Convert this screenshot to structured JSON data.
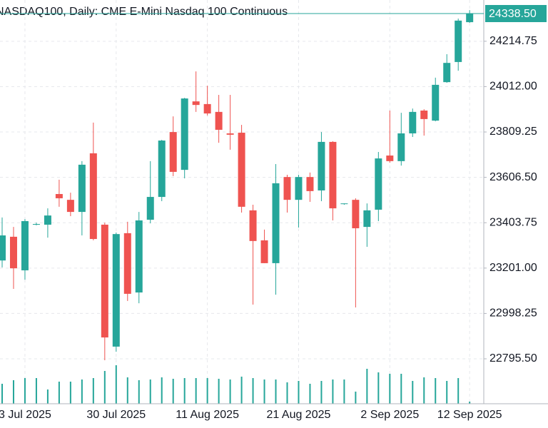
{
  "chart_data": {
    "type": "candlestick",
    "title": "NASDAQ100, Daily:  CME E-Mini Nasdaq 100 Continuous",
    "categories": [
      null,
      null,
      "3 Jul 2025",
      null,
      null,
      null,
      null,
      null,
      null,
      null,
      "30 Jul 2025",
      null,
      null,
      null,
      null,
      null,
      null,
      null,
      "11 Aug 2025",
      null,
      null,
      null,
      null,
      null,
      null,
      null,
      "21 Aug 2025",
      null,
      null,
      null,
      null,
      null,
      null,
      null,
      "2 Sep 2025",
      null,
      null,
      null,
      null,
      null,
      null,
      "12 Sep 2025"
    ],
    "open": [
      23235,
      23341,
      23191,
      23395,
      23395,
      23532,
      23506,
      23452,
      23714,
      23395,
      22850,
      23357,
      23092,
      23417,
      23519,
      23809,
      23640,
      23946,
      23934,
      23899,
      23803,
      23806,
      23459,
      23325,
      23223,
      23608,
      23506,
      23608,
      23548,
      23765,
      23487,
      23506,
      23385,
      23462,
      23704,
      23679,
      23803,
      23905,
      23860,
      24032,
      24122,
      24300
    ],
    "high": [
      23427,
      23385,
      23420,
      23404,
      23468,
      23596,
      23538,
      23679,
      23851,
      23404,
      23360,
      23408,
      23452,
      23679,
      23774,
      23879,
      23962,
      24080,
      24016,
      23975,
      23975,
      23841,
      23484,
      23373,
      23666,
      23618,
      23618,
      23628,
      23809,
      23768,
      23490,
      23513,
      23490,
      23720,
      23905,
      23895,
      23914,
      23911,
      24052,
      24157,
      24316,
      24354
    ],
    "low": [
      23204,
      23108,
      23149,
      23392,
      23337,
      23475,
      23433,
      23347,
      23325,
      22789,
      22827,
      23054,
      23044,
      23401,
      23500,
      23612,
      23602,
      23899,
      23883,
      23761,
      23730,
      23449,
      23038,
      23223,
      23082,
      23449,
      23382,
      23497,
      23500,
      23414,
      23484,
      23025,
      23296,
      23411,
      23672,
      23659,
      23787,
      23793,
      23857,
      24029,
      24083,
      24297
    ],
    "close": [
      23347,
      23200,
      23411,
      23398,
      23436,
      23513,
      23452,
      23663,
      23331,
      22891,
      23353,
      23086,
      23414,
      23519,
      23771,
      23631,
      23959,
      23930,
      23892,
      23819,
      23797,
      23475,
      23322,
      23223,
      23580,
      23506,
      23608,
      23545,
      23765,
      23468,
      23490,
      23379,
      23459,
      23691,
      23679,
      23803,
      23899,
      23867,
      24020,
      24118,
      24307,
      24338.5
    ],
    "volume": [
      28,
      33,
      36,
      36,
      20,
      31,
      31,
      34,
      36,
      46,
      54,
      37,
      33,
      34,
      37,
      35,
      36,
      36,
      36,
      35,
      34,
      38,
      36,
      34,
      34,
      30,
      32,
      28,
      32,
      34,
      34,
      17,
      49,
      44,
      42,
      42,
      32,
      37,
      36,
      32,
      36,
      3
    ],
    "up_color": "#26a69a",
    "down_color": "#ef5350",
    "volume_color": "#26a69a",
    "last_price": {
      "value": 24338.5,
      "label": "24338.50"
    },
    "ylim": [
      22594.7,
      24399.1
    ],
    "yticks": [
      {
        "value": 22795.5,
        "label": "22795.50"
      },
      {
        "value": 22998.25,
        "label": "22998.25"
      },
      {
        "value": 23201,
        "label": "23201.00"
      },
      {
        "value": 23403.75,
        "label": "23403.75"
      },
      {
        "value": 23606.5,
        "label": "23606.50"
      },
      {
        "value": 23809.25,
        "label": "23809.25"
      },
      {
        "value": 24012,
        "label": "24012.00"
      },
      {
        "value": 24214.75,
        "label": "24214.75"
      }
    ],
    "grid": true
  }
}
